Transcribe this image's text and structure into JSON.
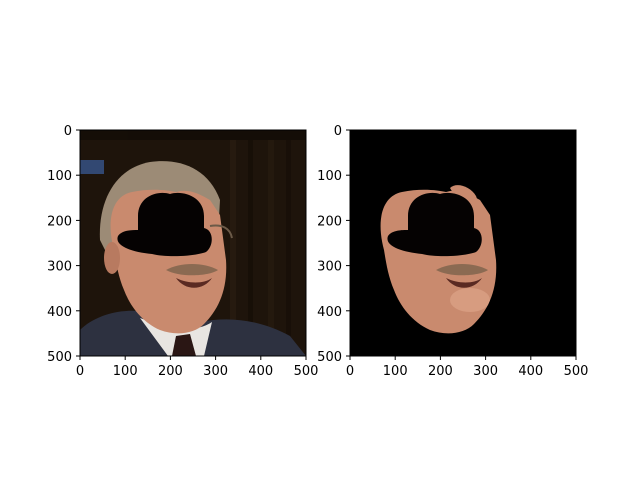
{
  "chart_data": [
    {
      "type": "image",
      "title": "",
      "xlabel": "",
      "ylabel": "",
      "xlim": [
        0,
        500
      ],
      "ylim": [
        500,
        0
      ],
      "xticks": [
        "0",
        "100",
        "200",
        "300",
        "400",
        "500"
      ],
      "yticks": [
        "0",
        "100",
        "200",
        "300",
        "400",
        "500"
      ],
      "content": "photo of man in suit with black bowler-hat-shaped mask over upper face"
    },
    {
      "type": "image",
      "title": "",
      "xlabel": "",
      "ylabel": "",
      "xlim": [
        0,
        500
      ],
      "ylim": [
        500,
        0
      ],
      "xticks": [
        "0",
        "100",
        "200",
        "300",
        "400",
        "500"
      ],
      "yticks": [
        "0",
        "100",
        "200",
        "300",
        "400",
        "500"
      ],
      "content": "segmented face region on black background with same black mask"
    }
  ],
  "colors": {
    "background_dark": "#1f140c",
    "skin": "#c98a6e",
    "hair": "#9c8b76",
    "suit": "#2d3140",
    "shirt": "#e6e3df",
    "mask": "#050202"
  }
}
